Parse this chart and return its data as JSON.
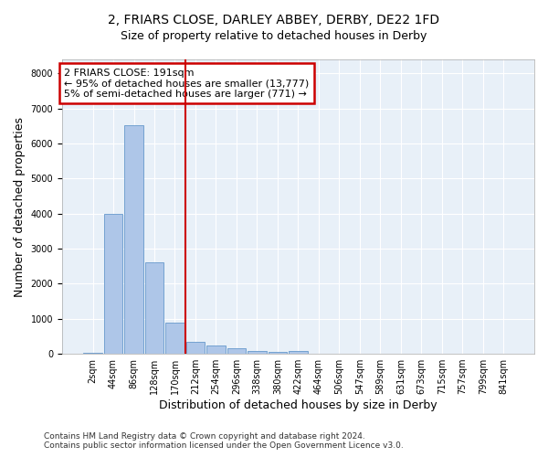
{
  "title": "2, FRIARS CLOSE, DARLEY ABBEY, DERBY, DE22 1FD",
  "subtitle": "Size of property relative to detached houses in Derby",
  "xlabel": "Distribution of detached houses by size in Derby",
  "ylabel": "Number of detached properties",
  "bar_color": "#aec6e8",
  "bar_edge_color": "#6699cc",
  "background_color": "#e8f0f8",
  "grid_color": "#ffffff",
  "bin_labels": [
    "2sqm",
    "44sqm",
    "86sqm",
    "128sqm",
    "170sqm",
    "212sqm",
    "254sqm",
    "296sqm",
    "338sqm",
    "380sqm",
    "422sqm",
    "464sqm",
    "506sqm",
    "547sqm",
    "589sqm",
    "631sqm",
    "673sqm",
    "715sqm",
    "757sqm",
    "799sqm",
    "841sqm"
  ],
  "bar_values": [
    25,
    3980,
    6530,
    2600,
    880,
    350,
    230,
    150,
    80,
    50,
    90,
    0,
    0,
    0,
    0,
    0,
    0,
    0,
    0,
    0,
    0
  ],
  "ylim": [
    0,
    8400
  ],
  "yticks": [
    0,
    1000,
    2000,
    3000,
    4000,
    5000,
    6000,
    7000,
    8000
  ],
  "vline_color": "#cc0000",
  "vline_x": 4.5,
  "annotation_text": "2 FRIARS CLOSE: 191sqm\n← 95% of detached houses are smaller (13,777)\n5% of semi-detached houses are larger (771) →",
  "annotation_box_color": "#cc0000",
  "footer_text": "Contains HM Land Registry data © Crown copyright and database right 2024.\nContains public sector information licensed under the Open Government Licence v3.0.",
  "title_fontsize": 10,
  "subtitle_fontsize": 9,
  "axis_label_fontsize": 9,
  "tick_fontsize": 7,
  "annotation_fontsize": 8,
  "footer_fontsize": 6.5
}
